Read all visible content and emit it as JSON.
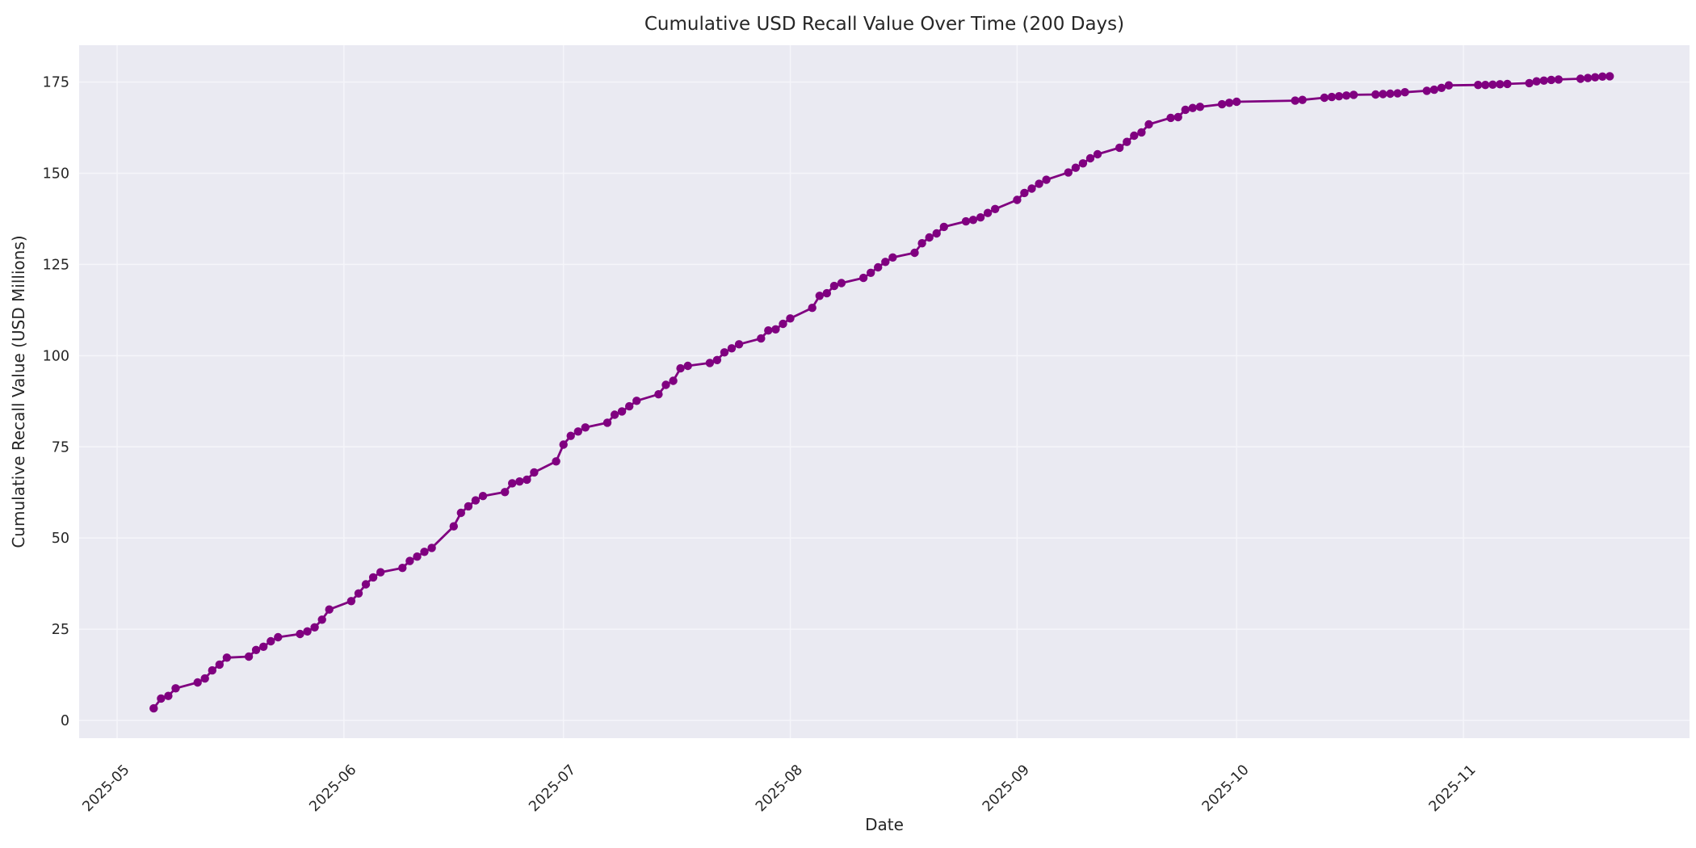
{
  "figure": {
    "background": "#ffffff"
  },
  "chart_data": {
    "type": "line",
    "title": "Cumulative USD Recall Value Over Time (200 Days)",
    "xlabel": "Date",
    "ylabel": "Cumulative Recall Value (USD Millions)",
    "legend": "none",
    "grid": "on",
    "plot_background": "#eaeaf2",
    "grid_color": "#f5f5fa",
    "line_color": "#800080",
    "marker": "circle-icon",
    "marker_color": "#800080",
    "text_color": "#262626",
    "x_tick_labels": [
      "2025-05",
      "2025-06",
      "2025-07",
      "2025-08",
      "2025-09",
      "2025-10",
      "2025-11"
    ],
    "x_tick_dates": [
      "2025-05-01",
      "2025-06-01",
      "2025-07-01",
      "2025-08-01",
      "2025-09-01",
      "2025-10-01",
      "2025-11-01"
    ],
    "y_ticks": [
      0,
      25,
      50,
      75,
      100,
      125,
      150,
      175
    ],
    "ylim": [
      -5.5,
      185.5
    ],
    "xlim_dates": [
      "2025-04-26",
      "2025-11-29"
    ],
    "series": [
      {
        "name": "Cumulative USD Recall Value",
        "points": [
          [
            "2025-05-06",
            3.3
          ],
          [
            "2025-05-07",
            6.0
          ],
          [
            "2025-05-08",
            6.7
          ],
          [
            "2025-05-09",
            8.8
          ],
          [
            "2025-05-12",
            10.4
          ],
          [
            "2025-05-13",
            11.5
          ],
          [
            "2025-05-14",
            13.7
          ],
          [
            "2025-05-15",
            15.3
          ],
          [
            "2025-05-16",
            17.2
          ],
          [
            "2025-05-19",
            17.5
          ],
          [
            "2025-05-20",
            19.3
          ],
          [
            "2025-05-21",
            20.2
          ],
          [
            "2025-05-22",
            21.7
          ],
          [
            "2025-05-23",
            22.8
          ],
          [
            "2025-05-26",
            23.7
          ],
          [
            "2025-05-27",
            24.4
          ],
          [
            "2025-05-28",
            25.5
          ],
          [
            "2025-05-29",
            27.6
          ],
          [
            "2025-05-30",
            30.4
          ],
          [
            "2025-06-02",
            32.7
          ],
          [
            "2025-06-03",
            34.8
          ],
          [
            "2025-06-04",
            37.3
          ],
          [
            "2025-06-05",
            39.2
          ],
          [
            "2025-06-06",
            40.6
          ],
          [
            "2025-06-09",
            41.8
          ],
          [
            "2025-06-10",
            43.7
          ],
          [
            "2025-06-11",
            44.9
          ],
          [
            "2025-06-12",
            46.2
          ],
          [
            "2025-06-13",
            47.3
          ],
          [
            "2025-06-16",
            53.2
          ],
          [
            "2025-06-17",
            56.9
          ],
          [
            "2025-06-18",
            58.7
          ],
          [
            "2025-06-19",
            60.3
          ],
          [
            "2025-06-20",
            61.5
          ],
          [
            "2025-06-23",
            62.6
          ],
          [
            "2025-06-24",
            65.0
          ],
          [
            "2025-06-25",
            65.5
          ],
          [
            "2025-06-26",
            66.0
          ],
          [
            "2025-06-27",
            68.0
          ],
          [
            "2025-06-30",
            71.0
          ],
          [
            "2025-07-01",
            75.6
          ],
          [
            "2025-07-02",
            78.0
          ],
          [
            "2025-07-03",
            79.2
          ],
          [
            "2025-07-04",
            80.3
          ],
          [
            "2025-07-07",
            81.6
          ],
          [
            "2025-07-08",
            83.8
          ],
          [
            "2025-07-09",
            84.7
          ],
          [
            "2025-07-10",
            86.1
          ],
          [
            "2025-07-11",
            87.6
          ],
          [
            "2025-07-14",
            89.4
          ],
          [
            "2025-07-15",
            92.0
          ],
          [
            "2025-07-16",
            93.1
          ],
          [
            "2025-07-17",
            96.5
          ],
          [
            "2025-07-18",
            97.2
          ],
          [
            "2025-07-21",
            98.0
          ],
          [
            "2025-07-22",
            98.8
          ],
          [
            "2025-07-23",
            100.9
          ],
          [
            "2025-07-24",
            102.0
          ],
          [
            "2025-07-25",
            103.1
          ],
          [
            "2025-07-28",
            104.7
          ],
          [
            "2025-07-29",
            106.9
          ],
          [
            "2025-07-30",
            107.2
          ],
          [
            "2025-07-31",
            108.7
          ],
          [
            "2025-08-01",
            110.2
          ],
          [
            "2025-08-04",
            113.1
          ],
          [
            "2025-08-05",
            116.4
          ],
          [
            "2025-08-06",
            117.1
          ],
          [
            "2025-08-07",
            119.1
          ],
          [
            "2025-08-08",
            119.9
          ],
          [
            "2025-08-11",
            121.3
          ],
          [
            "2025-08-12",
            122.7
          ],
          [
            "2025-08-13",
            124.2
          ],
          [
            "2025-08-14",
            125.7
          ],
          [
            "2025-08-15",
            126.9
          ],
          [
            "2025-08-18",
            128.2
          ],
          [
            "2025-08-19",
            130.8
          ],
          [
            "2025-08-20",
            132.4
          ],
          [
            "2025-08-21",
            133.5
          ],
          [
            "2025-08-22",
            135.3
          ],
          [
            "2025-08-25",
            136.8
          ],
          [
            "2025-08-26",
            137.2
          ],
          [
            "2025-08-27",
            137.9
          ],
          [
            "2025-08-28",
            139.1
          ],
          [
            "2025-08-29",
            140.2
          ],
          [
            "2025-09-01",
            142.7
          ],
          [
            "2025-09-02",
            144.6
          ],
          [
            "2025-09-03",
            145.8
          ],
          [
            "2025-09-04",
            147.1
          ],
          [
            "2025-09-05",
            148.2
          ],
          [
            "2025-09-08",
            150.2
          ],
          [
            "2025-09-09",
            151.5
          ],
          [
            "2025-09-10",
            152.7
          ],
          [
            "2025-09-11",
            154.1
          ],
          [
            "2025-09-12",
            155.2
          ],
          [
            "2025-09-15",
            157.0
          ],
          [
            "2025-09-16",
            158.6
          ],
          [
            "2025-09-17",
            160.3
          ],
          [
            "2025-09-18",
            161.2
          ],
          [
            "2025-09-19",
            163.4
          ],
          [
            "2025-09-22",
            165.2
          ],
          [
            "2025-09-23",
            165.4
          ],
          [
            "2025-09-24",
            167.4
          ],
          [
            "2025-09-25",
            167.9
          ],
          [
            "2025-09-26",
            168.2
          ],
          [
            "2025-09-29",
            168.9
          ],
          [
            "2025-09-30",
            169.3
          ],
          [
            "2025-10-01",
            169.6
          ],
          [
            "2025-10-09",
            169.9
          ],
          [
            "2025-10-10",
            170.1
          ],
          [
            "2025-10-13",
            170.7
          ],
          [
            "2025-10-14",
            170.9
          ],
          [
            "2025-10-15",
            171.1
          ],
          [
            "2025-10-16",
            171.3
          ],
          [
            "2025-10-17",
            171.5
          ],
          [
            "2025-10-20",
            171.6
          ],
          [
            "2025-10-21",
            171.7
          ],
          [
            "2025-10-22",
            171.8
          ],
          [
            "2025-10-23",
            171.9
          ],
          [
            "2025-10-24",
            172.2
          ],
          [
            "2025-10-27",
            172.6
          ],
          [
            "2025-10-28",
            172.9
          ],
          [
            "2025-10-29",
            173.4
          ],
          [
            "2025-10-30",
            174.1
          ],
          [
            "2025-11-03",
            174.2
          ],
          [
            "2025-11-04",
            174.2
          ],
          [
            "2025-11-05",
            174.3
          ],
          [
            "2025-11-06",
            174.4
          ],
          [
            "2025-11-07",
            174.5
          ],
          [
            "2025-11-10",
            174.7
          ],
          [
            "2025-11-11",
            175.2
          ],
          [
            "2025-11-12",
            175.4
          ],
          [
            "2025-11-13",
            175.6
          ],
          [
            "2025-11-14",
            175.7
          ],
          [
            "2025-11-17",
            175.9
          ],
          [
            "2025-11-18",
            176.1
          ],
          [
            "2025-11-19",
            176.3
          ],
          [
            "2025-11-20",
            176.5
          ],
          [
            "2025-11-21",
            176.6
          ]
        ]
      }
    ]
  }
}
